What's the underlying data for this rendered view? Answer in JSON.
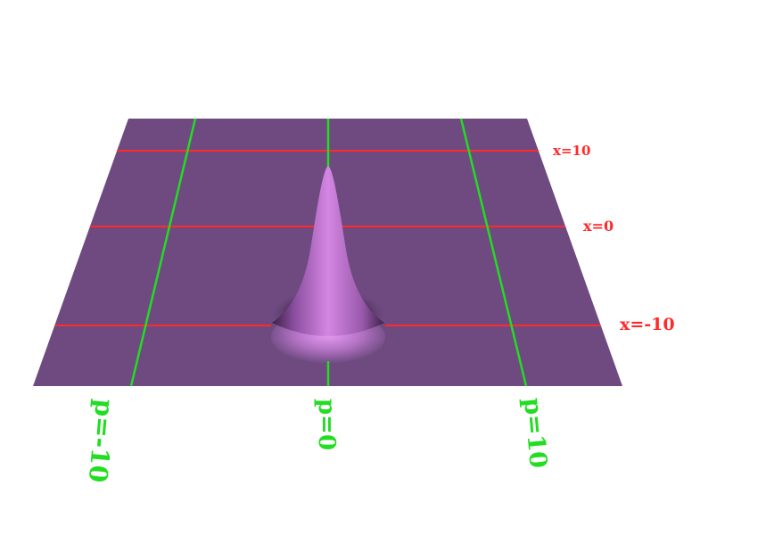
{
  "plot": {
    "surface_color": "#6e4a80",
    "peak_color": "#d07ae0",
    "x_line_color": "#ff2a2a",
    "p_line_color": "#22dd22",
    "x_labels": [
      "x=10",
      "x=0",
      "x=-10"
    ],
    "p_labels": [
      "p=-10",
      "p=0",
      "p=10"
    ]
  }
}
